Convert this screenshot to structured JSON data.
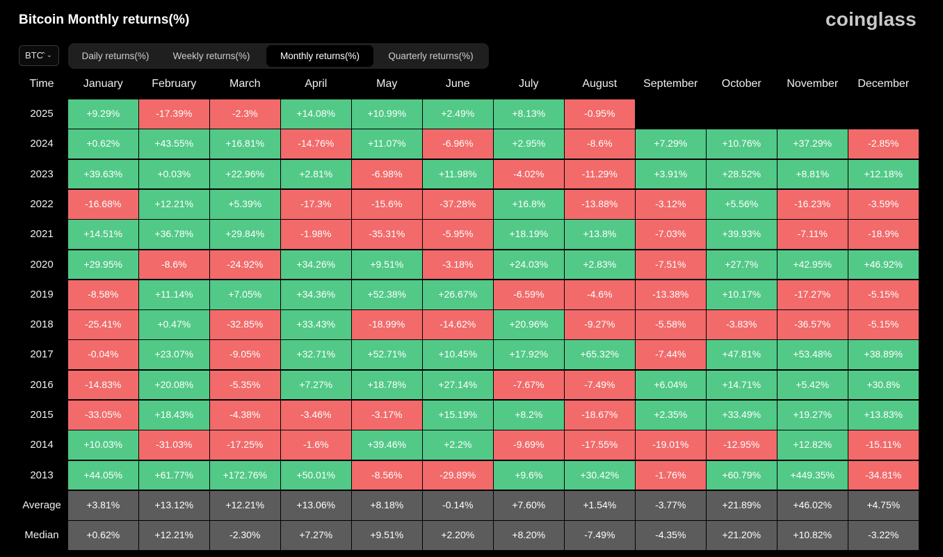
{
  "header": {
    "title": "Bitcoin Monthly returns(%)",
    "logo": "coinglass"
  },
  "controls": {
    "coin": "BTC",
    "tabs": [
      "Daily returns(%)",
      "Weekly returns(%)",
      "Monthly returns(%)",
      "Quarterly returns(%)"
    ],
    "active_tab": 2
  },
  "colors": {
    "positive": "#52c987",
    "negative": "#f26a6a",
    "summary": "#5c5c5c",
    "background": "#000000"
  },
  "chart_data": {
    "type": "heatmap",
    "corner_label": "Time",
    "columns": [
      "January",
      "February",
      "March",
      "April",
      "May",
      "June",
      "July",
      "August",
      "September",
      "October",
      "November",
      "December"
    ],
    "rows": [
      {
        "label": "2025",
        "values": [
          "+9.29%",
          "-17.39%",
          "-2.3%",
          "+14.08%",
          "+10.99%",
          "+2.49%",
          "+8.13%",
          "-0.95%",
          null,
          null,
          null,
          null
        ]
      },
      {
        "label": "2024",
        "values": [
          "+0.62%",
          "+43.55%",
          "+16.81%",
          "-14.76%",
          "+11.07%",
          "-6.96%",
          "+2.95%",
          "-8.6%",
          "+7.29%",
          "+10.76%",
          "+37.29%",
          "-2.85%"
        ]
      },
      {
        "label": "2023",
        "values": [
          "+39.63%",
          "+0.03%",
          "+22.96%",
          "+2.81%",
          "-6.98%",
          "+11.98%",
          "-4.02%",
          "-11.29%",
          "+3.91%",
          "+28.52%",
          "+8.81%",
          "+12.18%"
        ]
      },
      {
        "label": "2022",
        "values": [
          "-16.68%",
          "+12.21%",
          "+5.39%",
          "-17.3%",
          "-15.6%",
          "-37.28%",
          "+16.8%",
          "-13.88%",
          "-3.12%",
          "+5.56%",
          "-16.23%",
          "-3.59%"
        ]
      },
      {
        "label": "2021",
        "values": [
          "+14.51%",
          "+36.78%",
          "+29.84%",
          "-1.98%",
          "-35.31%",
          "-5.95%",
          "+18.19%",
          "+13.8%",
          "-7.03%",
          "+39.93%",
          "-7.11%",
          "-18.9%"
        ]
      },
      {
        "label": "2020",
        "values": [
          "+29.95%",
          "-8.6%",
          "-24.92%",
          "+34.26%",
          "+9.51%",
          "-3.18%",
          "+24.03%",
          "+2.83%",
          "-7.51%",
          "+27.7%",
          "+42.95%",
          "+46.92%"
        ]
      },
      {
        "label": "2019",
        "values": [
          "-8.58%",
          "+11.14%",
          "+7.05%",
          "+34.36%",
          "+52.38%",
          "+26.67%",
          "-6.59%",
          "-4.6%",
          "-13.38%",
          "+10.17%",
          "-17.27%",
          "-5.15%"
        ]
      },
      {
        "label": "2018",
        "values": [
          "-25.41%",
          "+0.47%",
          "-32.85%",
          "+33.43%",
          "-18.99%",
          "-14.62%",
          "+20.96%",
          "-9.27%",
          "-5.58%",
          "-3.83%",
          "-36.57%",
          "-5.15%"
        ]
      },
      {
        "label": "2017",
        "values": [
          "-0.04%",
          "+23.07%",
          "-9.05%",
          "+32.71%",
          "+52.71%",
          "+10.45%",
          "+17.92%",
          "+65.32%",
          "-7.44%",
          "+47.81%",
          "+53.48%",
          "+38.89%"
        ]
      },
      {
        "label": "2016",
        "values": [
          "-14.83%",
          "+20.08%",
          "-5.35%",
          "+7.27%",
          "+18.78%",
          "+27.14%",
          "-7.67%",
          "-7.49%",
          "+6.04%",
          "+14.71%",
          "+5.42%",
          "+30.8%"
        ]
      },
      {
        "label": "2015",
        "values": [
          "-33.05%",
          "+18.43%",
          "-4.38%",
          "-3.46%",
          "-3.17%",
          "+15.19%",
          "+8.2%",
          "-18.67%",
          "+2.35%",
          "+33.49%",
          "+19.27%",
          "+13.83%"
        ]
      },
      {
        "label": "2014",
        "values": [
          "+10.03%",
          "-31.03%",
          "-17.25%",
          "-1.6%",
          "+39.46%",
          "+2.2%",
          "-9.69%",
          "-17.55%",
          "-19.01%",
          "-12.95%",
          "+12.82%",
          "-15.11%"
        ]
      },
      {
        "label": "2013",
        "values": [
          "+44.05%",
          "+61.77%",
          "+172.76%",
          "+50.01%",
          "-8.56%",
          "-29.89%",
          "+9.6%",
          "+30.42%",
          "-1.76%",
          "+60.79%",
          "+449.35%",
          "-34.81%"
        ]
      }
    ],
    "summary_rows": [
      {
        "label": "Average",
        "values": [
          "+3.81%",
          "+13.12%",
          "+12.21%",
          "+13.06%",
          "+8.18%",
          "-0.14%",
          "+7.60%",
          "+1.54%",
          "-3.77%",
          "+21.89%",
          "+46.02%",
          "+4.75%"
        ]
      },
      {
        "label": "Median",
        "values": [
          "+0.62%",
          "+12.21%",
          "-2.30%",
          "+7.27%",
          "+9.51%",
          "+2.20%",
          "+8.20%",
          "-7.49%",
          "-4.35%",
          "+21.20%",
          "+10.82%",
          "-3.22%"
        ]
      }
    ]
  }
}
